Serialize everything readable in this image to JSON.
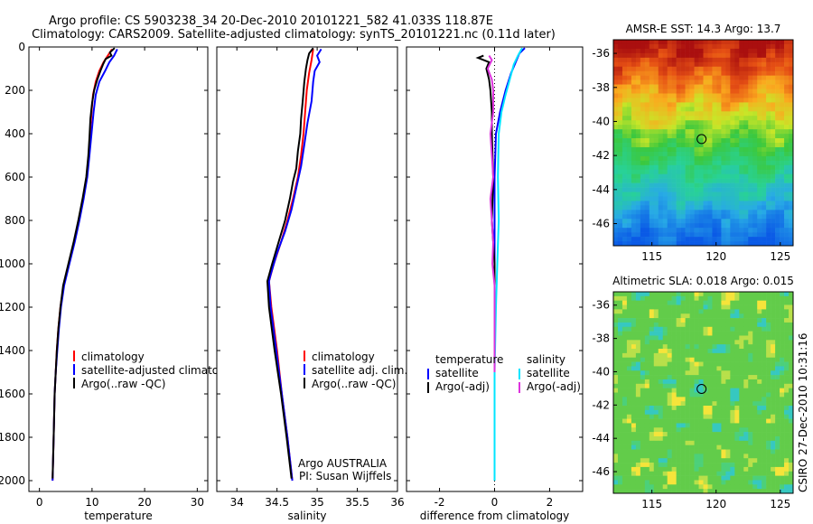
{
  "title_line1": "Argo profile: CS 5903238_34 20-Dec-2010 20101221_582 41.033S 118.87E",
  "title_line2": "Climatology: CARS2009. Satellite-adjusted climatology: synTS_20101221.nc (0.11d later)",
  "side_label": "CSIRO 27-Dec-2010 10:31:16",
  "credit_line1": "Argo AUSTRALIA",
  "credit_line2": "PI: Susan Wijffels",
  "colors": {
    "climatology": "#ff0000",
    "satellite": "#0000ff",
    "argo": "#000000",
    "sat_salinity_diff": "#00e5ff",
    "argo_salinity_diff": "#dd33dd"
  },
  "chart_data": [
    {
      "type": "line",
      "name": "temperature-profile",
      "xlabel": "temperature",
      "ylabel": "",
      "xlim": [
        -2,
        32
      ],
      "ylim": [
        2050,
        0
      ],
      "xticks": [
        "0",
        "10",
        "20",
        "30"
      ],
      "yticks": [
        "0",
        "200",
        "400",
        "600",
        "800",
        "1000",
        "1200",
        "1400",
        "1600",
        "1800",
        "2000"
      ],
      "legend": [
        "climatology",
        "satellite-adjusted climatology",
        "Argo(..raw -QC)"
      ],
      "series": [
        {
          "name": "climatology",
          "color": "red",
          "points": [
            [
              13.8,
              10
            ],
            [
              13.0,
              40
            ],
            [
              12.2,
              70
            ],
            [
              11.4,
              110
            ],
            [
              10.7,
              160
            ],
            [
              10.2,
              220
            ],
            [
              9.9,
              300
            ],
            [
              9.6,
              400
            ],
            [
              9.4,
              500
            ],
            [
              9.0,
              600
            ],
            [
              8.3,
              700
            ],
            [
              7.5,
              800
            ],
            [
              6.6,
              900
            ],
            [
              5.6,
              1000
            ],
            [
              4.6,
              1100
            ],
            [
              4.0,
              1200
            ],
            [
              3.6,
              1300
            ],
            [
              3.3,
              1400
            ],
            [
              3.1,
              1500
            ],
            [
              2.9,
              1600
            ],
            [
              2.7,
              1800
            ],
            [
              2.5,
              2000
            ]
          ]
        },
        {
          "name": "satellite-adjusted climatology",
          "color": "blue",
          "points": [
            [
              14.8,
              10
            ],
            [
              14.2,
              40
            ],
            [
              13.3,
              70
            ],
            [
              12.5,
              110
            ],
            [
              11.4,
              160
            ],
            [
              10.7,
              220
            ],
            [
              10.3,
              300
            ],
            [
              9.9,
              400
            ],
            [
              9.5,
              500
            ],
            [
              9.1,
              600
            ],
            [
              8.4,
              700
            ],
            [
              7.6,
              800
            ],
            [
              6.7,
              900
            ],
            [
              5.7,
              1000
            ],
            [
              4.7,
              1100
            ],
            [
              4.1,
              1200
            ],
            [
              3.7,
              1300
            ],
            [
              3.4,
              1400
            ],
            [
              3.1,
              1500
            ],
            [
              2.9,
              1600
            ],
            [
              2.7,
              1800
            ],
            [
              2.5,
              2000
            ]
          ]
        },
        {
          "name": "Argo(..raw -QC)",
          "color": "black",
          "points": [
            [
              14.3,
              5
            ],
            [
              13.4,
              25
            ],
            [
              13.7,
              40
            ],
            [
              12.6,
              55
            ],
            [
              12.1,
              80
            ],
            [
              11.6,
              110
            ],
            [
              11.0,
              150
            ],
            [
              10.4,
              200
            ],
            [
              10.0,
              260
            ],
            [
              9.7,
              330
            ],
            [
              9.5,
              420
            ],
            [
              9.3,
              500
            ],
            [
              8.9,
              600
            ],
            [
              8.2,
              700
            ],
            [
              7.4,
              800
            ],
            [
              6.5,
              900
            ],
            [
              5.5,
              1000
            ],
            [
              4.5,
              1100
            ],
            [
              4.0,
              1200
            ],
            [
              3.6,
              1300
            ],
            [
              3.3,
              1400
            ],
            [
              3.1,
              1500
            ],
            [
              2.9,
              1600
            ],
            [
              2.7,
              1800
            ],
            [
              2.5,
              1990
            ]
          ]
        }
      ]
    },
    {
      "type": "line",
      "name": "salinity-profile",
      "xlabel": "salinity",
      "xlim": [
        33.75,
        36.0
      ],
      "ylim": [
        2050,
        0
      ],
      "xticks": [
        "34",
        "34.5",
        "35",
        "35.5",
        "36"
      ],
      "legend": [
        "climatology",
        "satellite adj. clim.",
        "Argo(..raw -QC)"
      ],
      "series": [
        {
          "name": "climatology",
          "color": "red",
          "points": [
            [
              34.95,
              10
            ],
            [
              34.93,
              60
            ],
            [
              34.9,
              120
            ],
            [
              34.87,
              200
            ],
            [
              34.85,
              300
            ],
            [
              34.83,
              400
            ],
            [
              34.8,
              500
            ],
            [
              34.76,
              600
            ],
            [
              34.7,
              700
            ],
            [
              34.63,
              800
            ],
            [
              34.55,
              900
            ],
            [
              34.46,
              1000
            ],
            [
              34.4,
              1080
            ],
            [
              34.43,
              1200
            ],
            [
              34.5,
              1400
            ],
            [
              34.56,
              1600
            ],
            [
              34.63,
              1800
            ],
            [
              34.69,
              2000
            ]
          ]
        },
        {
          "name": "satellite adj. clim.",
          "color": "blue",
          "points": [
            [
              35.05,
              10
            ],
            [
              35.0,
              40
            ],
            [
              35.03,
              70
            ],
            [
              34.97,
              110
            ],
            [
              34.95,
              160
            ],
            [
              34.93,
              250
            ],
            [
              34.88,
              350
            ],
            [
              34.84,
              450
            ],
            [
              34.8,
              550
            ],
            [
              34.74,
              650
            ],
            [
              34.68,
              750
            ],
            [
              34.6,
              850
            ],
            [
              34.5,
              950
            ],
            [
              34.42,
              1050
            ],
            [
              34.4,
              1080
            ],
            [
              34.42,
              1200
            ],
            [
              34.49,
              1400
            ],
            [
              34.56,
              1600
            ],
            [
              34.63,
              1800
            ],
            [
              34.69,
              2000
            ]
          ]
        },
        {
          "name": "Argo(..raw -QC)",
          "color": "black",
          "points": [
            [
              34.95,
              5
            ],
            [
              34.9,
              30
            ],
            [
              34.88,
              60
            ],
            [
              34.86,
              100
            ],
            [
              34.84,
              160
            ],
            [
              34.82,
              250
            ],
            [
              34.8,
              330
            ],
            [
              34.79,
              400
            ],
            [
              34.76,
              480
            ],
            [
              34.74,
              560
            ],
            [
              34.7,
              620
            ],
            [
              34.66,
              700
            ],
            [
              34.6,
              800
            ],
            [
              34.52,
              900
            ],
            [
              34.44,
              1000
            ],
            [
              34.38,
              1080
            ],
            [
              34.4,
              1200
            ],
            [
              34.47,
              1400
            ],
            [
              34.55,
              1600
            ],
            [
              34.62,
              1800
            ],
            [
              34.68,
              1990
            ]
          ]
        }
      ]
    },
    {
      "type": "line",
      "name": "difference-profile",
      "xlabel": "difference from climatology",
      "xlim": [
        -3.2,
        3.2
      ],
      "ylim": [
        2050,
        0
      ],
      "xticks": [
        "-2",
        "0",
        "2"
      ],
      "legend": [
        "temperature",
        "satellite",
        "Argo(-adj)",
        "salinity",
        "satellite",
        "Argo(-adj)"
      ],
      "series": [
        {
          "name": "temperature satellite",
          "color": "blue",
          "points": [
            [
              1.1,
              5
            ],
            [
              0.9,
              30
            ],
            [
              0.8,
              60
            ],
            [
              0.6,
              120
            ],
            [
              0.4,
              200
            ],
            [
              0.2,
              300
            ],
            [
              0.05,
              400
            ],
            [
              0.0,
              600
            ],
            [
              0.0,
              1000
            ],
            [
              0.0,
              1600
            ],
            [
              0.0,
              2000
            ]
          ]
        },
        {
          "name": "temperature Argo(-adj)",
          "color": "black",
          "points": [
            [
              -0.4,
              40
            ],
            [
              -0.6,
              50
            ],
            [
              -0.2,
              70
            ],
            [
              -0.3,
              100
            ],
            [
              -0.2,
              150
            ],
            [
              -0.15,
              200
            ],
            [
              -0.1,
              300
            ],
            [
              -0.1,
              400
            ],
            [
              -0.05,
              600
            ],
            [
              -0.1,
              800
            ],
            [
              0.0,
              1000
            ],
            [
              0.0,
              1200
            ]
          ]
        },
        {
          "name": "salinity satellite",
          "color": "cyan",
          "points": [
            [
              1.0,
              5
            ],
            [
              0.85,
              40
            ],
            [
              0.7,
              80
            ],
            [
              0.55,
              150
            ],
            [
              0.4,
              220
            ],
            [
              0.25,
              300
            ],
            [
              0.15,
              400
            ],
            [
              0.12,
              600
            ],
            [
              0.15,
              800
            ],
            [
              0.1,
              1000
            ],
            [
              0.05,
              1200
            ],
            [
              0.0,
              1500
            ],
            [
              0.0,
              2000
            ]
          ]
        },
        {
          "name": "salinity Argo(-adj)",
          "color": "magenta",
          "points": [
            [
              -0.2,
              40
            ],
            [
              -0.1,
              60
            ],
            [
              -0.25,
              100
            ],
            [
              -0.1,
              150
            ],
            [
              -0.05,
              200
            ],
            [
              -0.05,
              300
            ],
            [
              -0.15,
              400
            ],
            [
              -0.1,
              500
            ],
            [
              -0.05,
              600
            ],
            [
              -0.15,
              700
            ],
            [
              -0.1,
              800
            ],
            [
              -0.05,
              900
            ],
            [
              -0.08,
              1000
            ],
            [
              0.0,
              1100
            ],
            [
              0.0,
              1300
            ],
            [
              0.0,
              1500
            ]
          ]
        }
      ]
    },
    {
      "type": "heatmap",
      "name": "sst-map",
      "title": "AMSR-E SST: 14.3 Argo: 13.7",
      "xlim": [
        112,
        126
      ],
      "ylim": [
        -47.3,
        -35.2
      ],
      "xticks": [
        "115",
        "120",
        "125"
      ],
      "yticks": [
        "-36",
        "-38",
        "-40",
        "-42",
        "-44",
        "-46"
      ],
      "float_position": [
        118.87,
        -41.033
      ]
    },
    {
      "type": "heatmap",
      "name": "sla-map",
      "title": "Altimetric SLA: 0.018 Argo: 0.015",
      "xlim": [
        112,
        126
      ],
      "ylim": [
        -47.3,
        -35.2
      ],
      "xticks": [
        "115",
        "120",
        "125"
      ],
      "yticks": [
        "-36",
        "-38",
        "-40",
        "-42",
        "-44",
        "-46"
      ],
      "float_position": [
        118.87,
        -41.033
      ]
    }
  ]
}
